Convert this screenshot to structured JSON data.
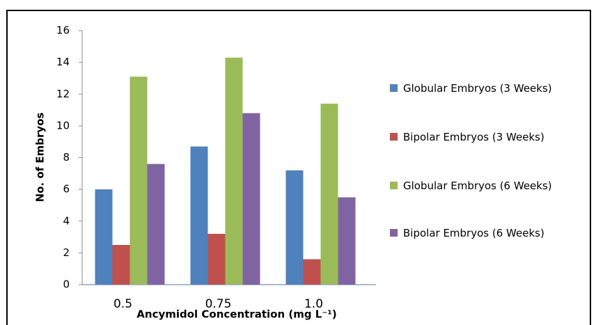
{
  "chart_data": {
    "type": "bar",
    "categories": [
      "0.5",
      "0.75",
      "1.0"
    ],
    "series": [
      {
        "name": "Globular Embryos (3 Weeks)",
        "color": "#4f81bd",
        "values": [
          6.0,
          8.7,
          7.2
        ]
      },
      {
        "name": "Bipolar Embryos (3 Weeks)",
        "color": "#c0504d",
        "values": [
          2.5,
          3.2,
          1.6
        ]
      },
      {
        "name": "Globular Embryos (6 Weeks)",
        "color": "#9bbb59",
        "values": [
          13.1,
          14.3,
          11.4
        ]
      },
      {
        "name": "Bipolar Embryos (6 Weeks)",
        "color": "#8064a2",
        "values": [
          7.6,
          10.8,
          5.5
        ]
      }
    ],
    "x_label": "Ancymidol Concentration (mg L⁻¹)",
    "y_label": "No. of Embryos",
    "ylim": [
      0,
      16
    ],
    "yticks": [
      0,
      2,
      4,
      6,
      8,
      10,
      12,
      14,
      16
    ],
    "grid": false
  }
}
